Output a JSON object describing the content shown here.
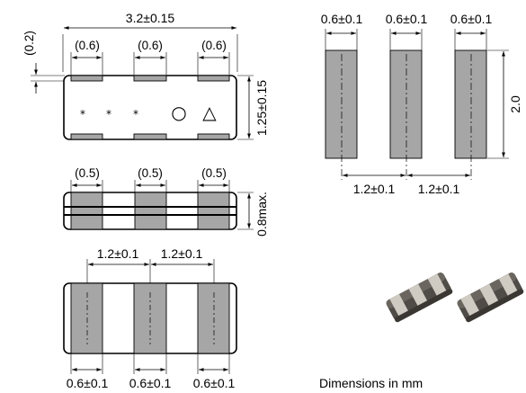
{
  "top_view": {
    "length_dim": "3.2±0.15",
    "terminal_widths": [
      "(0.6)",
      "(0.6)",
      "(0.6)"
    ],
    "edge_gap": "(0.2)",
    "width_dim": "1.25±0.15",
    "markings": [
      "*",
      "*",
      "*",
      "○",
      "△"
    ]
  },
  "side_view": {
    "terminal_widths": [
      "(0.5)",
      "(0.5)",
      "(0.5)"
    ],
    "height_dim": "0.8max."
  },
  "bottom_view": {
    "pitches": [
      "1.2±0.1",
      "1.2±0.1"
    ],
    "terminal_widths": [
      "0.6±0.1",
      "0.6±0.1",
      "0.6±0.1"
    ]
  },
  "land_pattern": {
    "pad_widths": [
      "0.6±0.1",
      "0.6±0.1",
      "0.6±0.1"
    ],
    "pad_length": "2.0",
    "pitches": [
      "1.2±0.1",
      "1.2±0.1"
    ]
  },
  "photo": {
    "chips": 2,
    "colors": {
      "ceramic": "#5a5650",
      "terminal": "#c9c5bd"
    }
  },
  "note": "Dimensions in mm"
}
